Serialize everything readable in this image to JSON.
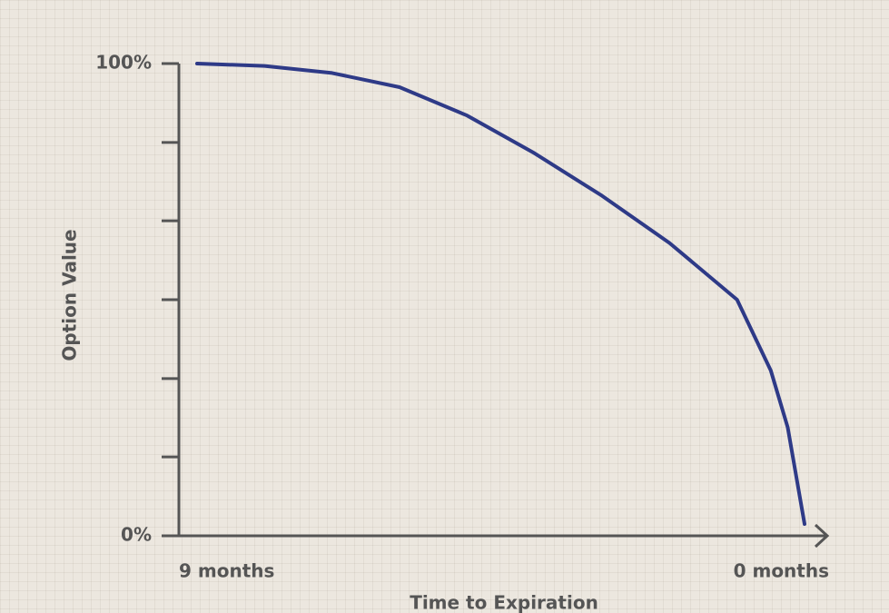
{
  "chart_data": {
    "type": "line",
    "x_label": "Time to Expiration",
    "y_label": "Option Value",
    "x": [
      9,
      8,
      7,
      6,
      5,
      4,
      3,
      2,
      1,
      0.5,
      0.25,
      0
    ],
    "series": [
      {
        "color": "#2e3a87",
        "values": [
          100,
          99.5,
          98,
          95,
          89,
          81,
          72,
          62,
          50,
          35,
          23,
          2.5
        ]
      }
    ],
    "xlim": [
      9,
      0
    ],
    "xticks": [
      {
        "value": 9,
        "label": "9 months"
      },
      {
        "value": 0,
        "label": "0 months"
      }
    ],
    "ylim": [
      0,
      100
    ],
    "yticks": [
      {
        "value": 0,
        "label": "0%"
      },
      {
        "value": 100,
        "label": "100%"
      }
    ],
    "minor_yticks": [
      16.7,
      33.3,
      50,
      66.7,
      83.3
    ]
  }
}
